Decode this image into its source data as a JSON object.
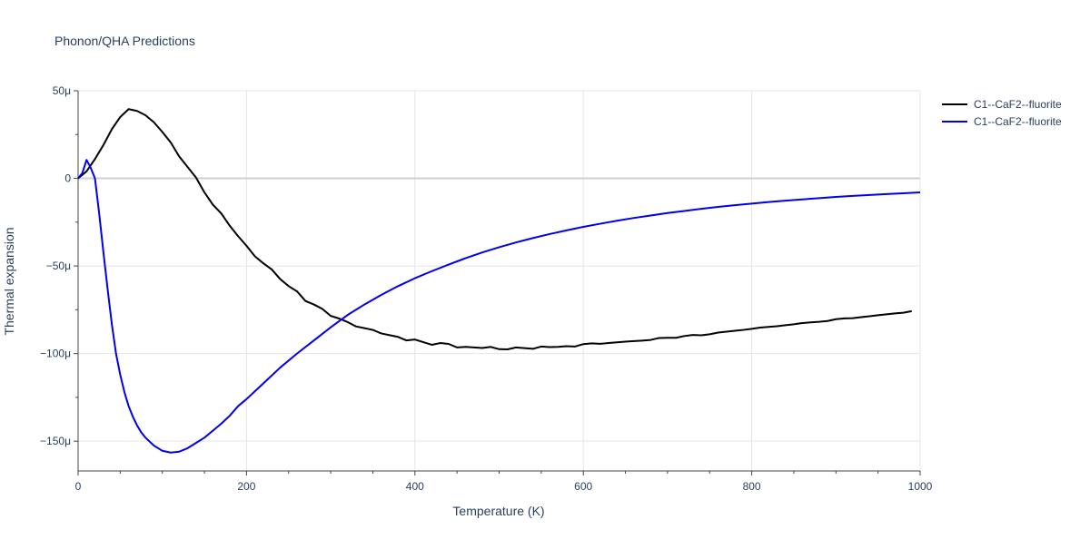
{
  "chart_data": {
    "type": "line",
    "title": "Phonon/QHA Predictions",
    "xlabel": "Temperature (K)",
    "ylabel": "Thermal expansion",
    "xlim": [
      0,
      1000
    ],
    "ylim": [
      -167,
      50
    ],
    "xticks": [
      0,
      200,
      400,
      600,
      800,
      1000
    ],
    "xtick_labels": [
      "0",
      "200",
      "400",
      "600",
      "800",
      "1000"
    ],
    "yticks": [
      50,
      0,
      -50,
      -100,
      -150
    ],
    "ytick_labels": [
      "50μ",
      "0",
      "−50μ",
      "−100μ",
      "−150μ"
    ],
    "grid": true,
    "legend_position": "top-right",
    "series": [
      {
        "name": "C1--CaF2--fluorite",
        "color": "#000000",
        "x": [
          0,
          10,
          20,
          30,
          40,
          50,
          60,
          70,
          80,
          90,
          100,
          110,
          120,
          130,
          140,
          150,
          160,
          170,
          180,
          190,
          200,
          210,
          220,
          230,
          240,
          250,
          260,
          270,
          280,
          290,
          300,
          310,
          320,
          330,
          340,
          350,
          360,
          370,
          380,
          390,
          400,
          410,
          420,
          430,
          440,
          450,
          460,
          470,
          480,
          490,
          500,
          510,
          520,
          530,
          540,
          550,
          560,
          570,
          580,
          590,
          600,
          610,
          620,
          630,
          640,
          650,
          660,
          670,
          680,
          690,
          700,
          710,
          720,
          730,
          740,
          750,
          760,
          770,
          780,
          790,
          800,
          810,
          820,
          830,
          840,
          850,
          860,
          870,
          880,
          890,
          900,
          910,
          920,
          930,
          940,
          950,
          960,
          970,
          980,
          990
        ],
        "y": [
          0,
          4,
          11,
          19,
          28,
          35,
          39.5,
          38.5,
          36,
          32,
          26.5,
          20.5,
          12.5,
          6.5,
          0.5,
          -8,
          -15,
          -20,
          -27,
          -33,
          -38.5,
          -44.5,
          -48.5,
          -52,
          -57.5,
          -61.5,
          -64.5,
          -70,
          -72,
          -74.5,
          -78.5,
          -80,
          -82,
          -84.5,
          -85.5,
          -86.5,
          -88.5,
          -89.5,
          -90.5,
          -92.5,
          -92,
          -93.5,
          -95,
          -94,
          -94.5,
          -96.5,
          -96.2,
          -96.5,
          -96.8,
          -96.2,
          -97.5,
          -97.6,
          -96.5,
          -96.9,
          -97.3,
          -96,
          -96.3,
          -96.2,
          -95.8,
          -96,
          -94.6,
          -94.2,
          -94.4,
          -94,
          -93.6,
          -93.2,
          -92.9,
          -92.6,
          -92.2,
          -91.1,
          -91,
          -91,
          -90,
          -89.4,
          -89.6,
          -89,
          -88,
          -87.5,
          -87,
          -86.5,
          -85.9,
          -85.2,
          -84.8,
          -84.4,
          -83.8,
          -83.3,
          -82.6,
          -82.2,
          -81.9,
          -81.4,
          -80.4,
          -79.9,
          -79.8,
          -79.2,
          -78.7,
          -78.1,
          -77.6,
          -77.1,
          -76.7,
          -75.8
        ]
      },
      {
        "name": "C1--CaF2--fluorite",
        "color": "#0000ee",
        "x": [
          0,
          5,
          10,
          15,
          20,
          25,
          30,
          35,
          40,
          45,
          50,
          55,
          60,
          65,
          70,
          75,
          80,
          90,
          100,
          110,
          120,
          130,
          140,
          150,
          160,
          170,
          180,
          190,
          200,
          220,
          240,
          260,
          280,
          300,
          320,
          340,
          360,
          380,
          400,
          420,
          440,
          460,
          480,
          500,
          520,
          540,
          560,
          580,
          600,
          620,
          640,
          660,
          680,
          700,
          720,
          740,
          760,
          780,
          800,
          820,
          840,
          860,
          880,
          900,
          920,
          940,
          960,
          980,
          1000
        ],
        "y": [
          0,
          3,
          10.5,
          6,
          0,
          -20,
          -42,
          -63,
          -83,
          -100,
          -112,
          -122,
          -130,
          -136,
          -141,
          -145,
          -148,
          -152.5,
          -155.5,
          -156.5,
          -156,
          -154,
          -151,
          -148,
          -144,
          -140,
          -135.5,
          -130,
          -126,
          -117,
          -108,
          -100,
          -92.5,
          -85,
          -78,
          -72,
          -66.5,
          -61.5,
          -57,
          -53,
          -49.2,
          -45.6,
          -42.3,
          -39.3,
          -36.6,
          -34.1,
          -31.8,
          -29.7,
          -27.7,
          -25.9,
          -24.2,
          -22.6,
          -21.2,
          -19.8,
          -18.6,
          -17.4,
          -16.3,
          -15.3,
          -14.4,
          -13.5,
          -12.7,
          -12,
          -11.3,
          -10.6,
          -10,
          -9.5,
          -9,
          -8.5,
          -8
        ]
      }
    ]
  }
}
